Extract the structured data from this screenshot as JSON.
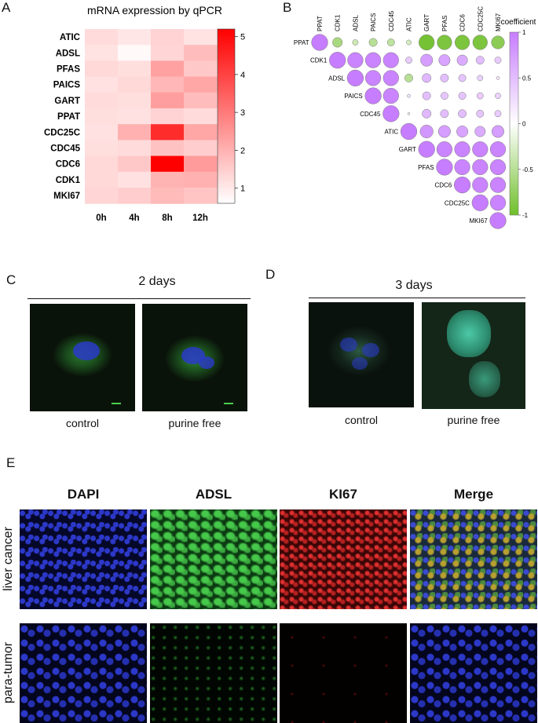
{
  "panels": {
    "A": "A",
    "B": "B",
    "C": "C",
    "D": "D",
    "E": "E"
  },
  "chart_data": [
    {
      "type": "heatmap",
      "title": "mRNA expression by qPCR",
      "rows": [
        "ATIC",
        "ADSL",
        "PFAS",
        "PAICS",
        "GART",
        "PPAT",
        "CDC25C",
        "CDC45",
        "CDC6",
        "CDK1",
        "MKI67"
      ],
      "columns": [
        "0h",
        "4h",
        "8h",
        "12h"
      ],
      "values": [
        [
          1.25,
          1.05,
          1.4,
          1.1
        ],
        [
          1.1,
          0.7,
          1.35,
          1.8
        ],
        [
          1.3,
          1.2,
          2.3,
          1.6
        ],
        [
          1.15,
          1.3,
          1.9,
          2.2
        ],
        [
          1.25,
          1.2,
          2.35,
          1.8
        ],
        [
          1.2,
          1.15,
          1.4,
          1.25
        ],
        [
          1.15,
          2.0,
          4.4,
          2.2
        ],
        [
          1.2,
          1.25,
          1.7,
          1.5
        ],
        [
          1.3,
          1.6,
          5.2,
          2.4
        ],
        [
          1.3,
          1.15,
          1.95,
          2.0
        ],
        [
          1.35,
          1.5,
          1.85,
          1.65
        ]
      ],
      "colorbar_ticks": [
        "1",
        "2",
        "3",
        "4",
        "5"
      ],
      "colorbar_range": [
        0.6,
        5.2
      ],
      "colors": {
        "low": "#ffffff",
        "high": "#ff0000"
      }
    },
    {
      "type": "correlation-matrix",
      "genes": [
        "PPAT",
        "CDK1",
        "ADSL",
        "PAICS",
        "CDC45",
        "ATIC",
        "GART",
        "PFAS",
        "CDC6",
        "CDC25C",
        "MKI67"
      ],
      "upper_triangle": [
        [
          1,
          -0.6,
          -0.35,
          -0.5,
          -0.45,
          -0.3,
          -0.95,
          -0.9,
          -0.9,
          -0.9,
          -0.8
        ],
        [
          1,
          0.95,
          0.95,
          0.95,
          0.4,
          0.75,
          0.7,
          0.65,
          0.5,
          0.4
        ],
        [
          1,
          0.95,
          0.95,
          -0.5,
          0.55,
          0.5,
          0.45,
          0.35,
          0.2
        ],
        [
          1,
          0.95,
          0.2,
          0.5,
          0.45,
          0.45,
          0.4,
          0.35
        ],
        [
          1,
          0.1,
          0.55,
          0.5,
          0.5,
          0.45,
          0.4
        ],
        [
          1,
          0.8,
          0.75,
          0.7,
          0.65,
          0.75
        ],
        [
          1,
          0.95,
          0.95,
          0.95,
          0.95
        ],
        [
          1,
          0.95,
          0.95,
          0.95
        ],
        [
          1,
          0.95,
          0.95
        ],
        [
          1,
          0.95
        ],
        [
          1
        ]
      ],
      "legend_title": "coefficient",
      "legend_ticks": [
        "1",
        "0.5",
        "0",
        "-0.5",
        "-1"
      ],
      "colors": {
        "positive": "#c77dff",
        "negative": "#6fbf2a",
        "zero": "#ffffff"
      }
    }
  ],
  "panel_c": {
    "title": "2 days",
    "captions": [
      "control",
      "purine free"
    ]
  },
  "panel_d": {
    "title": "3 days",
    "captions": [
      "control",
      "purine free"
    ]
  },
  "panel_e": {
    "channels": [
      "DAPI",
      "ADSL",
      "KI67",
      "Merge"
    ],
    "channel_colors": [
      "#1a2aa0",
      "#22a035",
      "#e02020",
      "#222222"
    ],
    "row_labels": [
      "liver cancer",
      "para-tumor"
    ]
  }
}
